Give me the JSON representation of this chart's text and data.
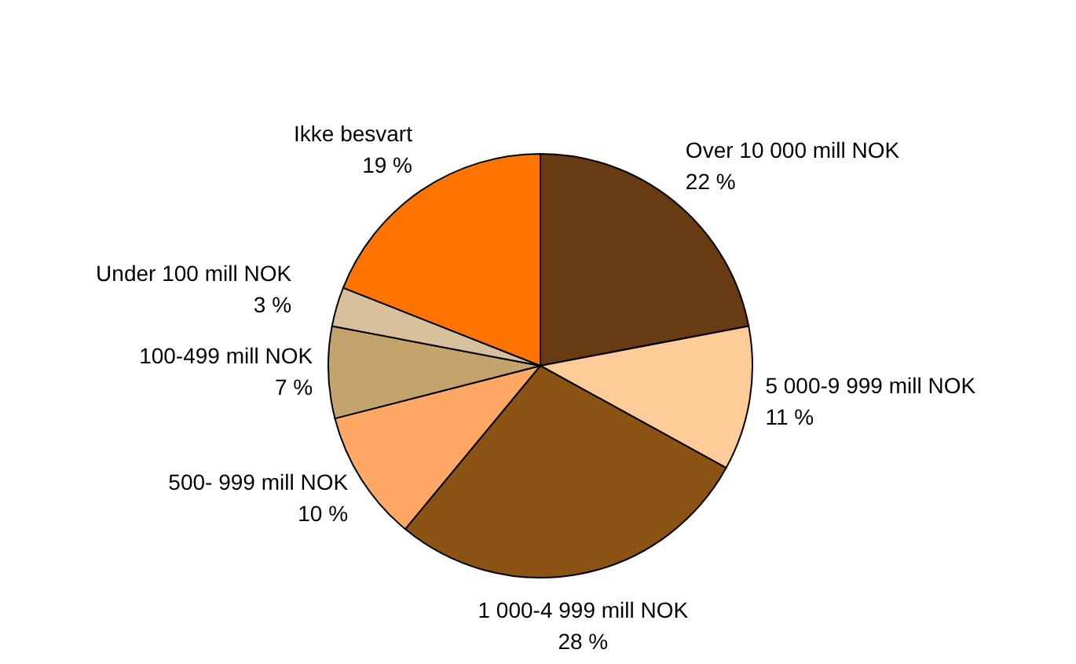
{
  "chart_data": {
    "type": "pie",
    "categories": [
      "Over 10 000 mill NOK",
      "5 000-9 999 mill NOK",
      "1 000-4 999 mill NOK",
      "500- 999 mill NOK",
      "100-499 mill NOK",
      "Under 100 mill NOK",
      "Ikke besvart"
    ],
    "values": [
      22,
      11,
      28,
      10,
      7,
      3,
      19
    ],
    "colors": [
      "#693b12",
      "#ffcc99",
      "#8b5314",
      "#ffa866",
      "#c4a46c",
      "#d8c09c",
      "#ff7300"
    ],
    "value_labels": [
      "22 %",
      "11 %",
      "28 %",
      "10 %",
      "7 %",
      "3 %",
      "19 %"
    ],
    "legend": false
  }
}
